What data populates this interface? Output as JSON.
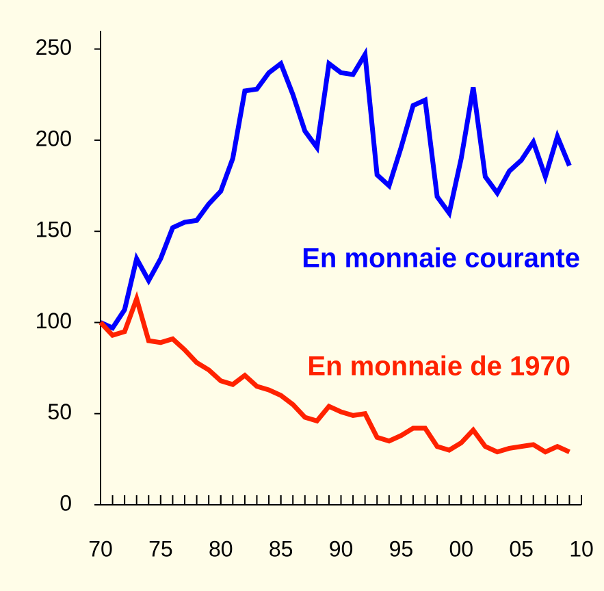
{
  "chart_data": {
    "type": "line",
    "x": [
      1970,
      1971,
      1972,
      1973,
      1974,
      1975,
      1976,
      1977,
      1978,
      1979,
      1980,
      1981,
      1982,
      1983,
      1984,
      1985,
      1986,
      1987,
      1988,
      1989,
      1990,
      1991,
      1992,
      1993,
      1994,
      1995,
      1996,
      1997,
      1998,
      1999,
      2000,
      2001,
      2002,
      2003,
      2004,
      2005,
      2006,
      2007,
      2008,
      2009
    ],
    "series": [
      {
        "name": "En monnaie courante",
        "color": "#0000ff",
        "values": [
          100,
          97,
          107,
          135,
          123,
          135,
          152,
          155,
          156,
          165,
          172,
          190,
          227,
          228,
          237,
          242,
          225,
          205,
          196,
          242,
          237,
          236,
          247,
          181,
          175,
          196,
          219,
          222,
          169,
          160,
          190,
          229,
          180,
          171,
          183,
          189,
          199,
          180,
          202,
          186
        ]
      },
      {
        "name": "En monnaie de 1970",
        "color": "#ff2200",
        "values": [
          100,
          93,
          95,
          113,
          90,
          89,
          91,
          85,
          78,
          74,
          68,
          66,
          71,
          65,
          63,
          60,
          55,
          48,
          46,
          54,
          51,
          49,
          50,
          37,
          35,
          38,
          42,
          42,
          32,
          30,
          34,
          41,
          32,
          29,
          31,
          32,
          33,
          29,
          32,
          29
        ]
      }
    ],
    "xlim": [
      1970,
      2010
    ],
    "xticks": [
      {
        "value": 1970,
        "label": "70"
      },
      {
        "value": 1975,
        "label": "75"
      },
      {
        "value": 1980,
        "label": "80"
      },
      {
        "value": 1985,
        "label": "85"
      },
      {
        "value": 1990,
        "label": "90"
      },
      {
        "value": 1995,
        "label": "95"
      },
      {
        "value": 2000,
        "label": "00"
      },
      {
        "value": 2005,
        "label": "05"
      },
      {
        "value": 2010,
        "label": "10"
      }
    ],
    "ylim": [
      0,
      260
    ],
    "yticks": [
      0,
      50,
      100,
      150,
      200,
      250
    ],
    "grid": false
  }
}
